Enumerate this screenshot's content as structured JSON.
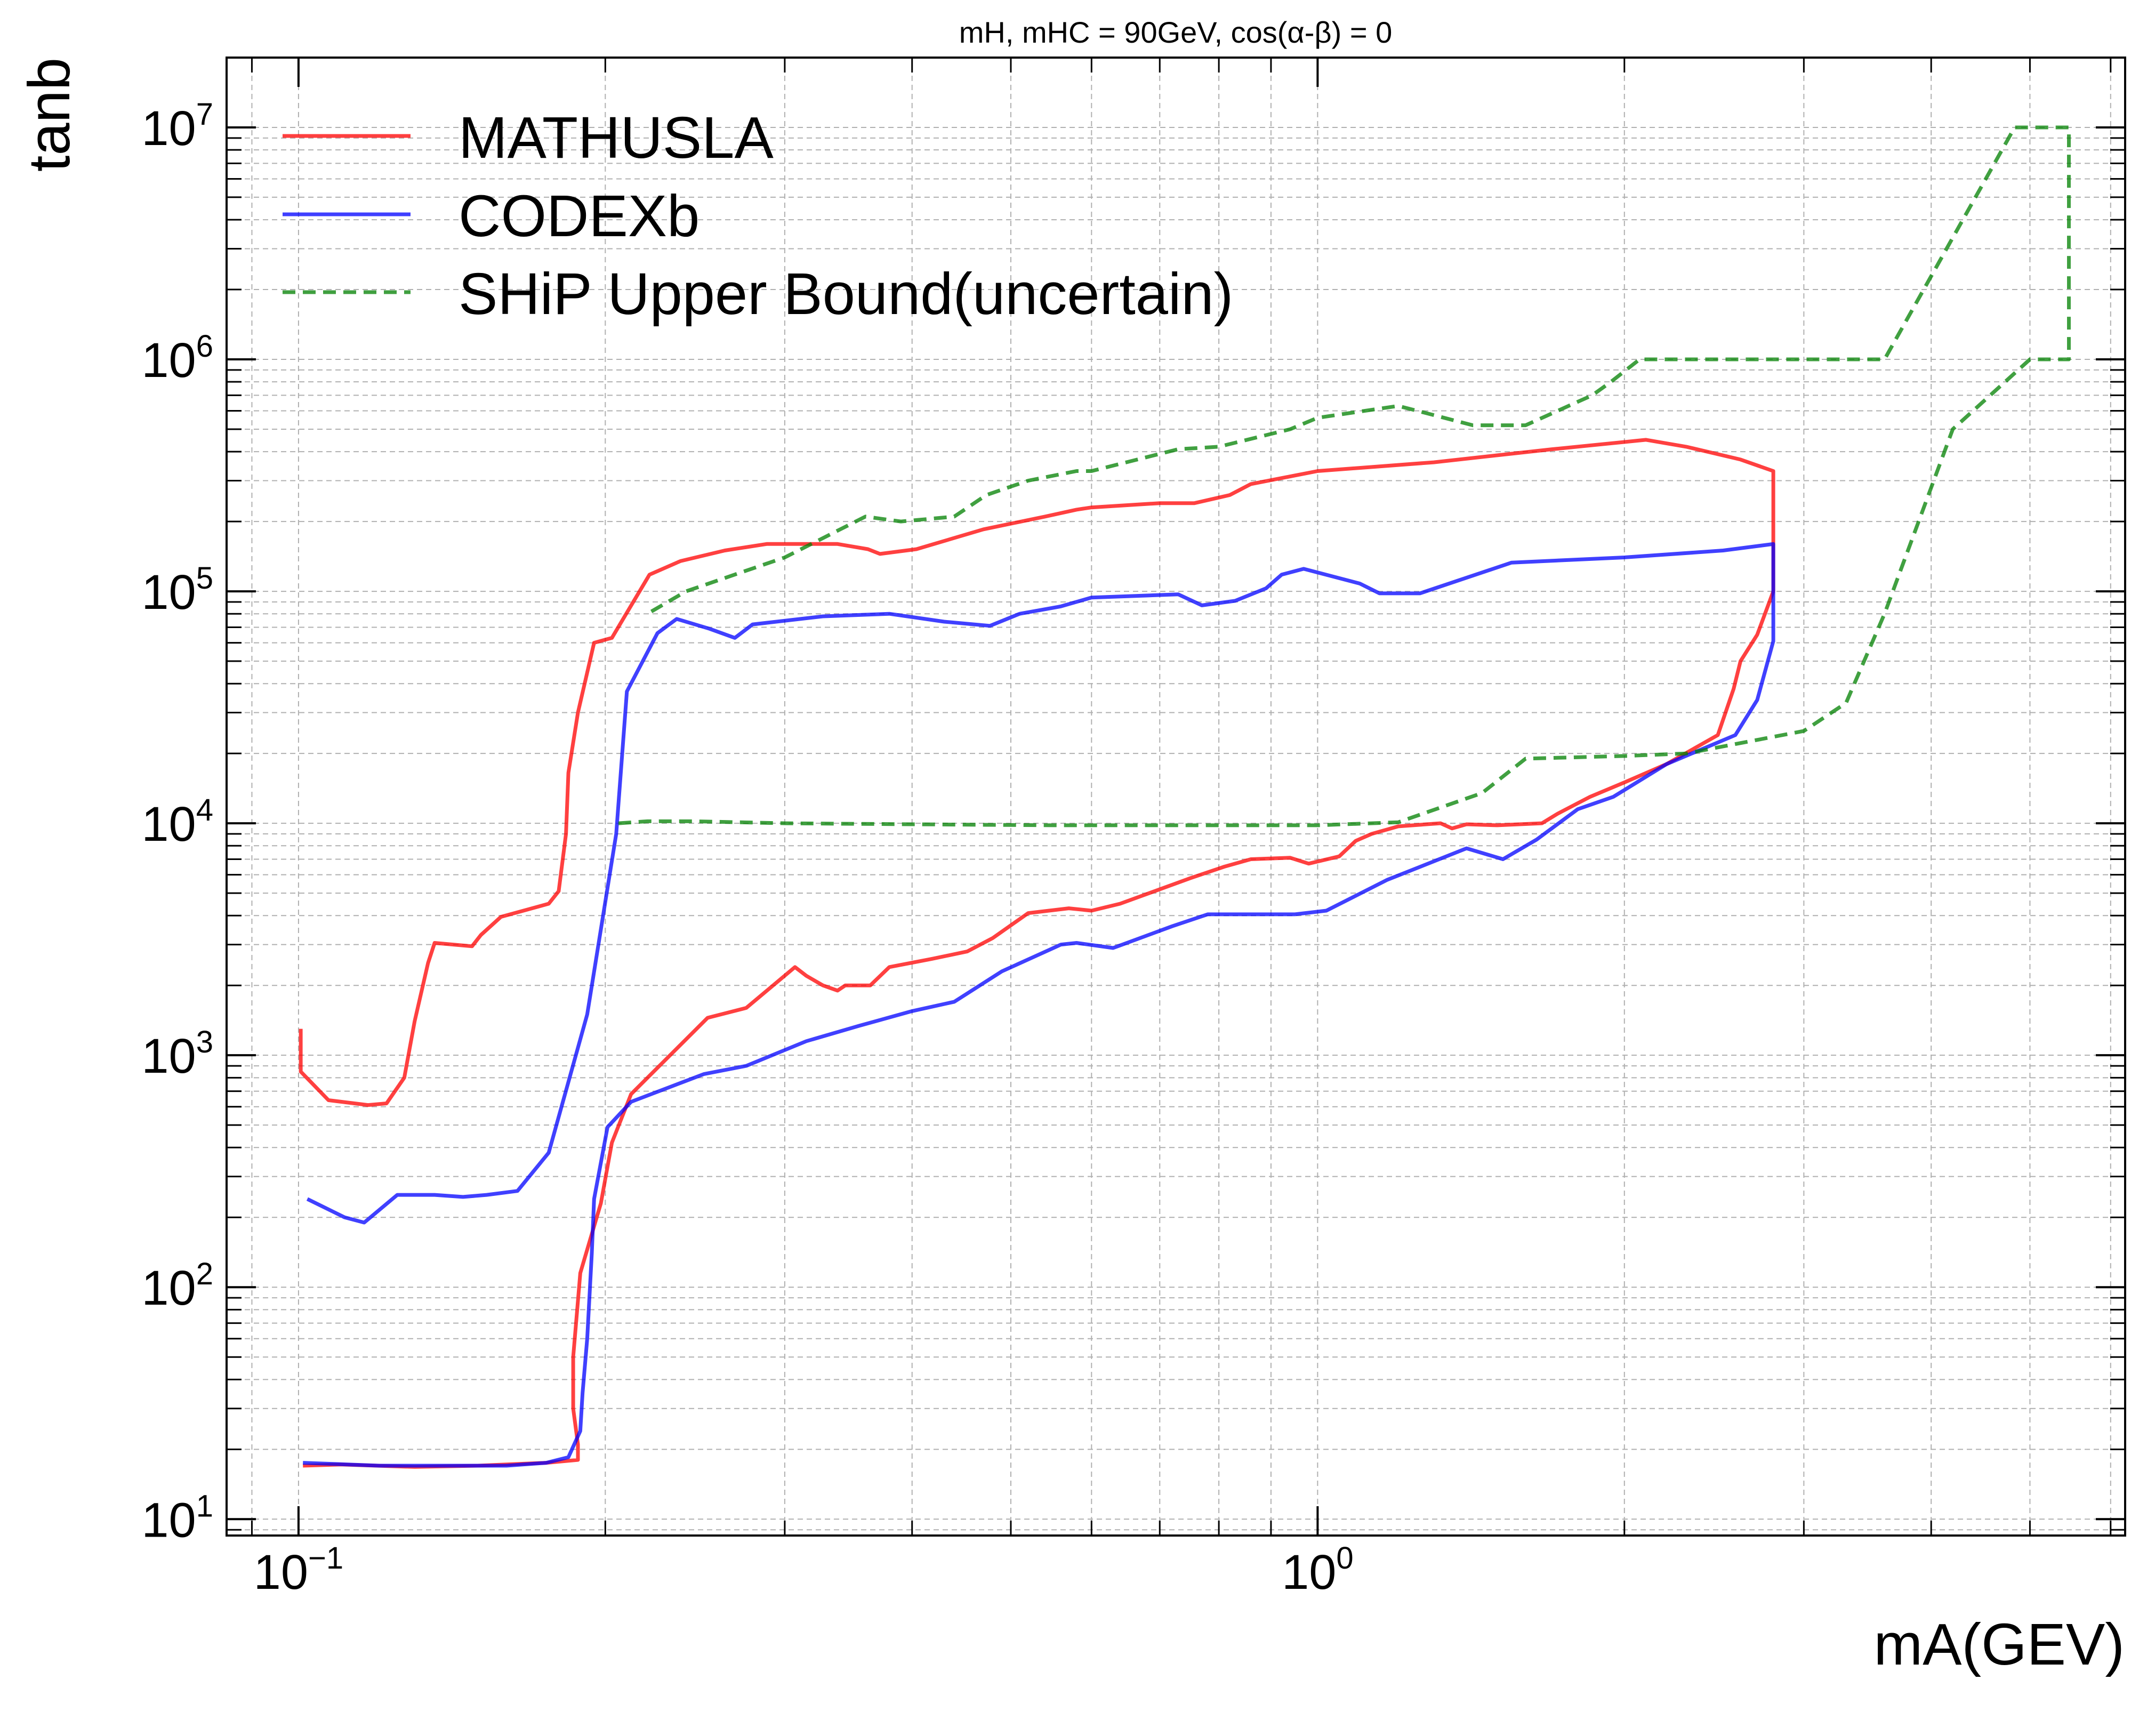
{
  "chart_data": {
    "type": "line",
    "title": "mH, mHC = 90GeV, cos(α-β) = 0",
    "xlabel": "mA(GEV)",
    "ylabel": "tanb",
    "xscale": "log",
    "yscale": "log",
    "xlim": [
      0.085,
      6.2
    ],
    "ylim": [
      8.5,
      20000000
    ],
    "grid": true,
    "legend_position": "top-left",
    "x_ticks": [
      {
        "value": 0.1,
        "base": "10",
        "exp": "−1"
      },
      {
        "value": 1,
        "base": "10",
        "exp": "0"
      }
    ],
    "y_ticks": [
      {
        "value": 10,
        "base": "10",
        "exp": "1"
      },
      {
        "value": 100,
        "base": "10",
        "exp": "2"
      },
      {
        "value": 1000,
        "base": "10",
        "exp": "3"
      },
      {
        "value": 10000,
        "base": "10",
        "exp": "4"
      },
      {
        "value": 100000,
        "base": "10",
        "exp": "5"
      },
      {
        "value": 1000000,
        "base": "10",
        "exp": "6"
      },
      {
        "value": 10000000,
        "base": "10",
        "exp": "7"
      }
    ],
    "series": [
      {
        "name": "MATHUSLA",
        "color": "#ff0000",
        "dash": "solid",
        "points": [
          [
            0.1005,
            1300
          ],
          [
            0.1005,
            850
          ],
          [
            0.107,
            640
          ],
          [
            0.117,
            610
          ],
          [
            0.122,
            620
          ],
          [
            0.127,
            800
          ],
          [
            0.13,
            1400
          ],
          [
            0.134,
            2500
          ],
          [
            0.136,
            3050
          ],
          [
            0.148,
            2950
          ],
          [
            0.151,
            3300
          ],
          [
            0.158,
            3950
          ],
          [
            0.176,
            4500
          ],
          [
            0.18,
            5100
          ],
          [
            0.183,
            9000
          ],
          [
            0.184,
            16500
          ],
          [
            0.188,
            30000
          ],
          [
            0.195,
            60000
          ],
          [
            0.203,
            63000
          ],
          [
            0.221,
            118000
          ],
          [
            0.237,
            135000
          ],
          [
            0.262,
            150000
          ],
          [
            0.288,
            160000
          ],
          [
            0.338,
            160000
          ],
          [
            0.362,
            152000
          ],
          [
            0.372,
            145000
          ],
          [
            0.404,
            152000
          ],
          [
            0.47,
            185000
          ],
          [
            0.54,
            210000
          ],
          [
            0.58,
            225000
          ],
          [
            0.6,
            230000
          ],
          [
            0.7,
            240000
          ],
          [
            0.757,
            240000
          ],
          [
            0.82,
            260000
          ],
          [
            0.86,
            290000
          ],
          [
            1.0,
            330000
          ],
          [
            1.3,
            360000
          ],
          [
            1.7,
            410000
          ],
          [
            2.1,
            450000
          ],
          [
            2.3,
            420000
          ],
          [
            2.6,
            370000
          ],
          [
            2.8,
            330000
          ],
          [
            2.8,
            100000
          ],
          [
            2.7,
            65000
          ],
          [
            2.6,
            50000
          ],
          [
            2.56,
            38000
          ],
          [
            2.47,
            24000
          ],
          [
            2.2,
            18000
          ],
          [
            2.0,
            15000
          ],
          [
            1.85,
            13000
          ],
          [
            1.72,
            11000
          ],
          [
            1.66,
            10000
          ],
          [
            1.5,
            9800
          ],
          [
            1.4,
            9900
          ],
          [
            1.355,
            9500
          ],
          [
            1.32,
            10000
          ],
          [
            1.2,
            9700
          ],
          [
            1.13,
            9000
          ],
          [
            1.09,
            8400
          ],
          [
            1.05,
            7200
          ],
          [
            0.98,
            6700
          ],
          [
            0.94,
            7100
          ],
          [
            0.86,
            7000
          ],
          [
            0.81,
            6500
          ],
          [
            0.75,
            5800
          ],
          [
            0.64,
            4500
          ],
          [
            0.6,
            4200
          ],
          [
            0.57,
            4300
          ],
          [
            0.52,
            4100
          ],
          [
            0.48,
            3200
          ],
          [
            0.453,
            2800
          ],
          [
            0.418,
            2600
          ],
          [
            0.38,
            2400
          ],
          [
            0.364,
            2000
          ],
          [
            0.344,
            2000
          ],
          [
            0.338,
            1900
          ],
          [
            0.327,
            2000
          ],
          [
            0.315,
            2200
          ],
          [
            0.307,
            2400
          ],
          [
            0.275,
            1600
          ],
          [
            0.252,
            1450
          ],
          [
            0.212,
            680
          ],
          [
            0.203,
            420
          ],
          [
            0.198,
            230
          ],
          [
            0.189,
            115
          ],
          [
            0.186,
            50
          ],
          [
            0.186,
            30
          ],
          [
            0.188,
            21
          ],
          [
            0.188,
            18
          ],
          [
            0.175,
            17.5
          ],
          [
            0.15,
            17
          ],
          [
            0.13,
            16.8
          ],
          [
            0.11,
            17.2
          ],
          [
            0.101,
            17
          ]
        ]
      },
      {
        "name": "CODEXb",
        "color": "#0000ff",
        "dash": "solid",
        "points": [
          [
            0.102,
            240
          ],
          [
            0.111,
            200
          ],
          [
            0.116,
            190
          ],
          [
            0.125,
            250
          ],
          [
            0.136,
            250
          ],
          [
            0.145,
            245
          ],
          [
            0.153,
            250
          ],
          [
            0.164,
            260
          ],
          [
            0.176,
            380
          ],
          [
            0.192,
            1500
          ],
          [
            0.205,
            9000
          ],
          [
            0.21,
            37000
          ],
          [
            0.225,
            66000
          ],
          [
            0.235,
            76000
          ],
          [
            0.253,
            69000
          ],
          [
            0.268,
            63000
          ],
          [
            0.279,
            72000
          ],
          [
            0.327,
            78000
          ],
          [
            0.38,
            80000
          ],
          [
            0.43,
            74000
          ],
          [
            0.477,
            71000
          ],
          [
            0.51,
            80000
          ],
          [
            0.559,
            86000
          ],
          [
            0.6,
            94000
          ],
          [
            0.73,
            97000
          ],
          [
            0.77,
            87000
          ],
          [
            0.83,
            91000
          ],
          [
            0.89,
            103000
          ],
          [
            0.922,
            118000
          ],
          [
            0.969,
            125000
          ],
          [
            1.1,
            108000
          ],
          [
            1.15,
            98000
          ],
          [
            1.26,
            98000
          ],
          [
            1.55,
            133000
          ],
          [
            2.0,
            140000
          ],
          [
            2.5,
            150000
          ],
          [
            2.8,
            160000
          ],
          [
            2.8,
            61000
          ],
          [
            2.7,
            34000
          ],
          [
            2.57,
            24000
          ],
          [
            2.2,
            18000
          ],
          [
            1.95,
            13000
          ],
          [
            1.8,
            11500
          ],
          [
            1.64,
            8500
          ],
          [
            1.52,
            7000
          ],
          [
            1.4,
            7800
          ],
          [
            1.17,
            5700
          ],
          [
            1.02,
            4200
          ],
          [
            0.95,
            4050
          ],
          [
            0.78,
            4050
          ],
          [
            0.72,
            3600
          ],
          [
            0.63,
            2900
          ],
          [
            0.58,
            3050
          ],
          [
            0.56,
            3000
          ],
          [
            0.49,
            2300
          ],
          [
            0.44,
            1700
          ],
          [
            0.4,
            1550
          ],
          [
            0.355,
            1340
          ],
          [
            0.315,
            1150
          ],
          [
            0.275,
            900
          ],
          [
            0.25,
            830
          ],
          [
            0.212,
            630
          ],
          [
            0.201,
            490
          ],
          [
            0.195,
            240
          ],
          [
            0.194,
            140
          ],
          [
            0.192,
            60
          ],
          [
            0.19,
            35
          ],
          [
            0.189,
            24
          ],
          [
            0.184,
            18.5
          ],
          [
            0.175,
            17.5
          ],
          [
            0.16,
            17
          ],
          [
            0.14,
            17
          ],
          [
            0.12,
            17
          ],
          [
            0.101,
            17.5
          ]
        ]
      },
      {
        "name": "SHiP Upper Bound(uncertain)",
        "color": "#008000",
        "dash": "dashed",
        "points": [
          [
            0.206,
            10000
          ],
          [
            0.22,
            10200
          ],
          [
            0.245,
            10200
          ],
          [
            0.3,
            10000
          ],
          [
            0.4,
            9900
          ],
          [
            0.55,
            9800
          ],
          [
            0.8,
            9800
          ],
          [
            1.0,
            9800
          ],
          [
            1.2,
            10100
          ],
          [
            1.45,
            13500
          ],
          [
            1.6,
            19000
          ],
          [
            2.0,
            19500
          ],
          [
            2.3,
            20000
          ],
          [
            3.0,
            25000
          ],
          [
            3.3,
            33000
          ],
          [
            3.6,
            80000
          ],
          [
            4.2,
            500000
          ],
          [
            5.0,
            1000000
          ],
          [
            5.46,
            1000000
          ],
          [
            5.46,
            10000000
          ],
          [
            4.83,
            10000000
          ],
          [
            3.6,
            1000000
          ],
          [
            2.95,
            1000000
          ],
          [
            2.07,
            1000000
          ],
          [
            1.94,
            800000
          ],
          [
            1.86,
            700000
          ],
          [
            1.72,
            600000
          ],
          [
            1.6,
            520000
          ],
          [
            1.42,
            520000
          ],
          [
            1.2,
            630000
          ],
          [
            1.0,
            560000
          ],
          [
            0.94,
            500000
          ],
          [
            0.8,
            420000
          ],
          [
            0.73,
            410000
          ],
          [
            0.6,
            330000
          ],
          [
            0.58,
            330000
          ],
          [
            0.52,
            300000
          ],
          [
            0.473,
            260000
          ],
          [
            0.44,
            210000
          ],
          [
            0.39,
            200000
          ],
          [
            0.36,
            210000
          ],
          [
            0.3,
            140000
          ],
          [
            0.24,
            100000
          ],
          [
            0.22,
            80000
          ]
        ]
      }
    ]
  }
}
